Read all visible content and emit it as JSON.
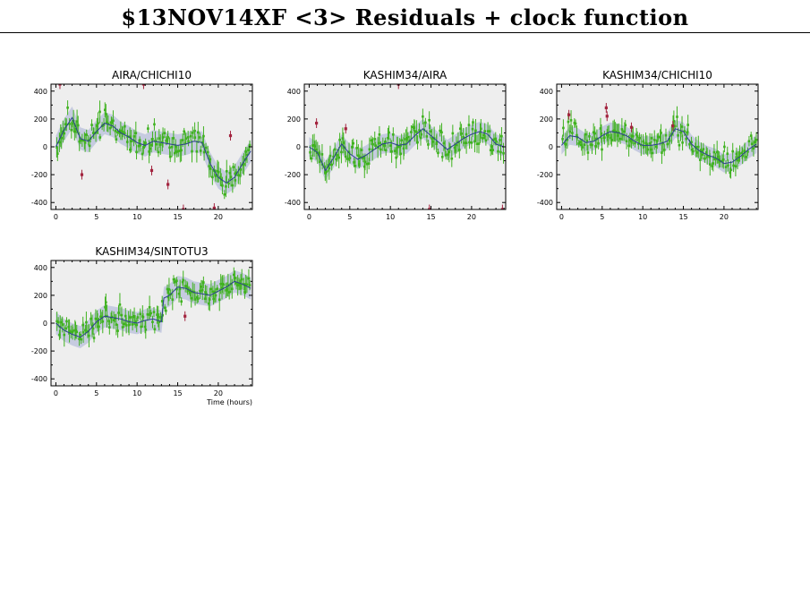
{
  "page_title": "$13NOV14XF <3> Residuals + clock function",
  "colors": {
    "background": "#ffffff",
    "plot_bg": "#eeeeee",
    "band": "#c6cbe0",
    "model_line": "#2c3f8f",
    "residual_points": "#3fb21f",
    "flagged_points": "#a3243f"
  },
  "chart_data": [
    {
      "type": "scatter",
      "title": "AIRA/CHICHI10",
      "xlabel": "",
      "ylabel": "",
      "xlim": [
        -0.6,
        24.2
      ],
      "ylim": [
        -450,
        450
      ],
      "xticks": [
        0,
        5,
        10,
        15,
        20
      ],
      "yticks": [
        -400,
        -200,
        0,
        200,
        400
      ],
      "model": [
        [
          0,
          0
        ],
        [
          1,
          120
        ],
        [
          2,
          210
        ],
        [
          3,
          60
        ],
        [
          4,
          40
        ],
        [
          5,
          110
        ],
        [
          6,
          170
        ],
        [
          7,
          150
        ],
        [
          8,
          100
        ],
        [
          9,
          70
        ],
        [
          10,
          30
        ],
        [
          11,
          10
        ],
        [
          12,
          40
        ],
        [
          13,
          30
        ],
        [
          14,
          20
        ],
        [
          15,
          10
        ],
        [
          16,
          20
        ],
        [
          17,
          40
        ],
        [
          18,
          30
        ],
        [
          19,
          -120
        ],
        [
          20,
          -220
        ],
        [
          21,
          -260
        ],
        [
          22,
          -220
        ],
        [
          23,
          -120
        ],
        [
          24,
          -30
        ]
      ],
      "band_halfwidth": 80,
      "flagged": [
        [
          0.5,
          450
        ],
        [
          3.2,
          -200
        ],
        [
          10.8,
          450
        ],
        [
          11.8,
          -170
        ],
        [
          13.8,
          -270
        ],
        [
          15.7,
          -450
        ],
        [
          19.5,
          -440
        ],
        [
          21.5,
          80
        ]
      ],
      "grid": false,
      "legend": "none"
    },
    {
      "type": "scatter",
      "title": "KASHIM34/AIRA",
      "xlabel": "",
      "ylabel": "",
      "xlim": [
        -0.6,
        24.2
      ],
      "ylim": [
        -450,
        450
      ],
      "xticks": [
        0,
        5,
        10,
        15,
        20
      ],
      "yticks": [
        -400,
        -200,
        0,
        200,
        400
      ],
      "model": [
        [
          0,
          0
        ],
        [
          1,
          -40
        ],
        [
          2,
          -170
        ],
        [
          3,
          -80
        ],
        [
          4,
          20
        ],
        [
          5,
          -50
        ],
        [
          6,
          -90
        ],
        [
          7,
          -60
        ],
        [
          8,
          -20
        ],
        [
          9,
          20
        ],
        [
          10,
          30
        ],
        [
          11,
          10
        ],
        [
          12,
          20
        ],
        [
          13,
          80
        ],
        [
          14,
          130
        ],
        [
          15,
          80
        ],
        [
          16,
          30
        ],
        [
          17,
          -20
        ],
        [
          18,
          20
        ],
        [
          19,
          60
        ],
        [
          20,
          90
        ],
        [
          21,
          110
        ],
        [
          22,
          90
        ],
        [
          23,
          20
        ],
        [
          24,
          0
        ]
      ],
      "band_halfwidth": 70,
      "flagged": [
        [
          0.9,
          170
        ],
        [
          4.5,
          130
        ],
        [
          11,
          450
        ],
        [
          14.8,
          -450
        ],
        [
          23.8,
          -450
        ]
      ],
      "grid": false,
      "legend": "none"
    },
    {
      "type": "scatter",
      "title": "KASHIM34/CHICHI10",
      "xlabel": "",
      "ylabel": "",
      "xlim": [
        -0.6,
        24.2
      ],
      "ylim": [
        -450,
        450
      ],
      "xticks": [
        0,
        5,
        10,
        15,
        20
      ],
      "yticks": [
        -400,
        -200,
        0,
        200,
        400
      ],
      "model": [
        [
          0,
          10
        ],
        [
          1,
          80
        ],
        [
          2,
          70
        ],
        [
          3,
          30
        ],
        [
          4,
          40
        ],
        [
          5,
          80
        ],
        [
          6,
          110
        ],
        [
          7,
          100
        ],
        [
          8,
          80
        ],
        [
          9,
          40
        ],
        [
          10,
          10
        ],
        [
          11,
          10
        ],
        [
          12,
          20
        ],
        [
          13,
          40
        ],
        [
          14,
          130
        ],
        [
          15,
          110
        ],
        [
          16,
          20
        ],
        [
          17,
          -30
        ],
        [
          18,
          -60
        ],
        [
          19,
          -80
        ],
        [
          20,
          -120
        ],
        [
          21,
          -110
        ],
        [
          22,
          -70
        ],
        [
          23,
          -20
        ],
        [
          24,
          20
        ]
      ],
      "band_halfwidth": 65,
      "flagged": [
        [
          0.9,
          230
        ],
        [
          5.5,
          280
        ],
        [
          5.6,
          220
        ],
        [
          8.6,
          140
        ],
        [
          13.7,
          150
        ]
      ],
      "grid": false,
      "legend": "none"
    },
    {
      "type": "scatter",
      "title": "KASHIM34/SINTOTU3",
      "xlabel": "Time (hours)",
      "ylabel": "",
      "xlim": [
        -0.6,
        24.2
      ],
      "ylim": [
        -450,
        450
      ],
      "xticks": [
        0,
        5,
        10,
        15,
        20
      ],
      "yticks": [
        -400,
        -200,
        0,
        200,
        400
      ],
      "model": [
        [
          0,
          0
        ],
        [
          1,
          -50
        ],
        [
          2,
          -80
        ],
        [
          3,
          -100
        ],
        [
          4,
          -60
        ],
        [
          5,
          10
        ],
        [
          6,
          50
        ],
        [
          7,
          40
        ],
        [
          8,
          30
        ],
        [
          9,
          10
        ],
        [
          10,
          0
        ],
        [
          11,
          20
        ],
        [
          12,
          30
        ],
        [
          13,
          10
        ],
        [
          13.3,
          180
        ],
        [
          14,
          200
        ],
        [
          15,
          260
        ],
        [
          16,
          250
        ],
        [
          17,
          220
        ],
        [
          18,
          210
        ],
        [
          19,
          200
        ],
        [
          20,
          230
        ],
        [
          21,
          260
        ],
        [
          22,
          300
        ],
        [
          23,
          280
        ],
        [
          24,
          250
        ]
      ],
      "band_halfwidth": 80,
      "flagged": [
        [
          15.9,
          50
        ]
      ],
      "grid": false,
      "legend": "none"
    }
  ]
}
